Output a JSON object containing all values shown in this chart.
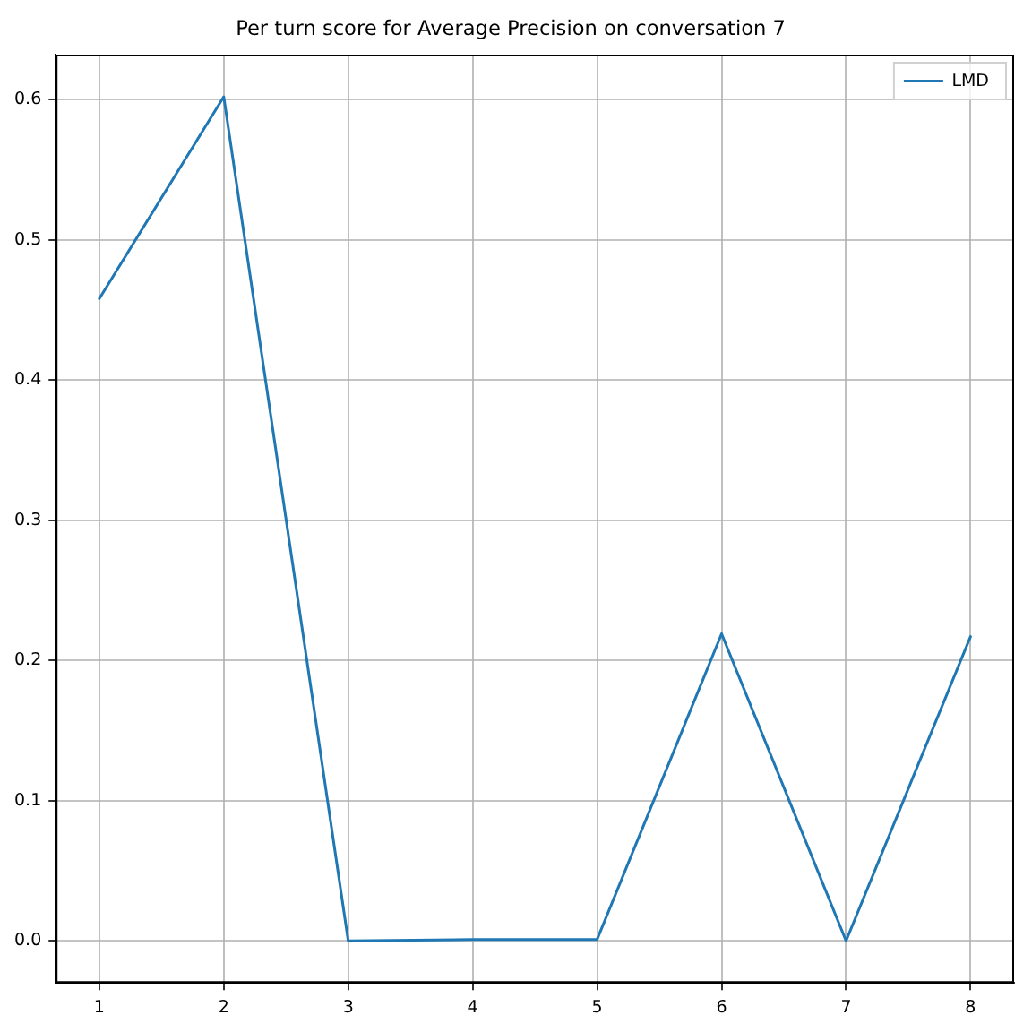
{
  "chart_data": {
    "type": "line",
    "title": "Per turn score for Average Precision on conversation 7",
    "x": [
      1,
      2,
      3,
      4,
      5,
      6,
      7,
      8
    ],
    "series": [
      {
        "name": "LMD",
        "color": "#1f77b4",
        "values": [
          0.458,
          0.602,
          0.0,
          0.001,
          0.001,
          0.219,
          0.0,
          0.217
        ]
      }
    ],
    "xlim": [
      0.65,
      8.35
    ],
    "xticks": [
      1,
      2,
      3,
      4,
      5,
      6,
      7,
      8
    ],
    "ylim": [
      -0.03,
      0.632
    ],
    "yticks": [
      {
        "value": 0,
        "label": "0.0"
      },
      0.1,
      0.2,
      0.3,
      0.4,
      0.5,
      0.6
    ],
    "grid": true,
    "legend": "top right"
  }
}
